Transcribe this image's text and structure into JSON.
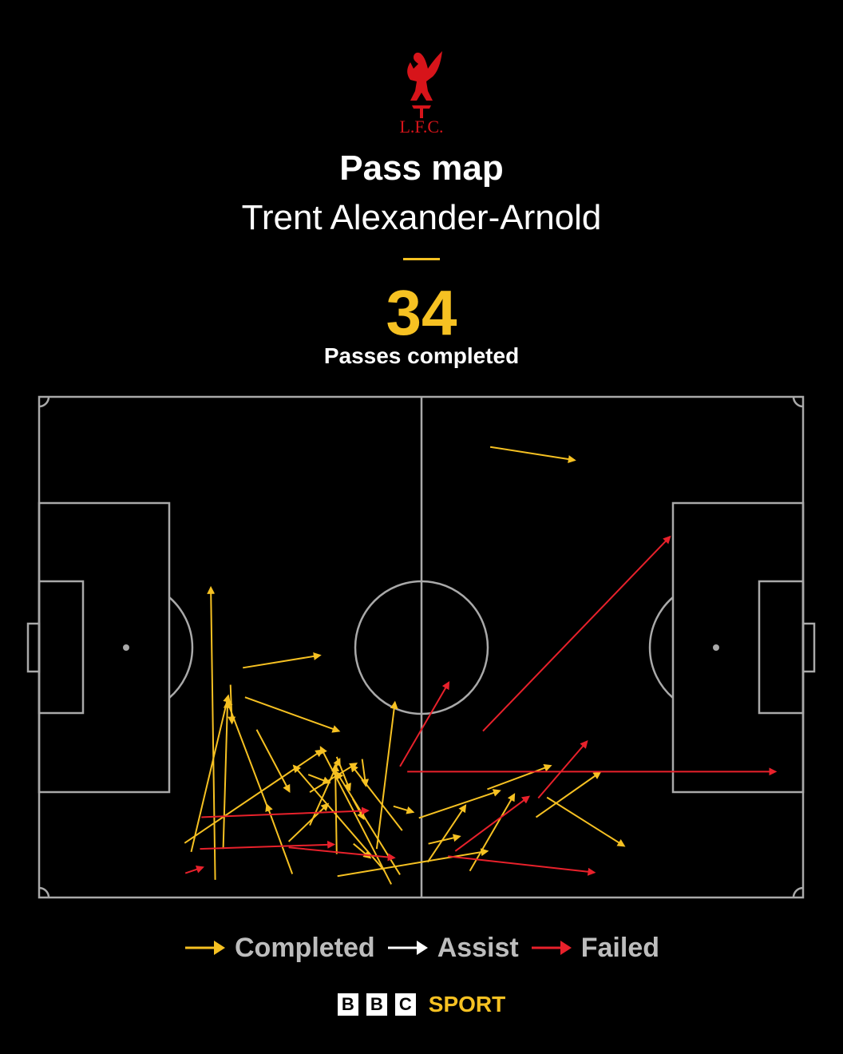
{
  "header": {
    "crest_text": "L.F.C.",
    "title": "Pass map",
    "subtitle": "Trent Alexander-Arnold",
    "stat_value": "34",
    "stat_label": "Passes completed"
  },
  "colors": {
    "background": "#000000",
    "pitch_lines": "#a9a9a9",
    "completed": "#f6c122",
    "assist": "#ffffff",
    "failed": "#e8212b",
    "crest": "#d7141a"
  },
  "legend": [
    {
      "label": "Completed",
      "color": "#f6c122"
    },
    {
      "label": "Assist",
      "color": "#ffffff"
    },
    {
      "label": "Failed",
      "color": "#e8212b"
    }
  ],
  "footer": {
    "bbc_letters": [
      "B",
      "B",
      "C"
    ],
    "sport_label": "SPORT"
  },
  "chart_data": {
    "type": "pass-map",
    "pitch": {
      "length": 105,
      "width": 68
    },
    "attacking_direction": "right",
    "passes": [
      {
        "outcome": "completed",
        "start": [
          62.0,
          61.2
        ],
        "end": [
          73.6,
          59.4
        ]
      },
      {
        "outcome": "completed",
        "start": [
          24.2,
          2.4
        ],
        "end": [
          23.6,
          42.1
        ]
      },
      {
        "outcome": "completed",
        "start": [
          28.0,
          31.2
        ],
        "end": [
          38.6,
          32.9
        ]
      },
      {
        "outcome": "completed",
        "start": [
          20.9,
          6.2
        ],
        "end": [
          26.0,
          27.4
        ]
      },
      {
        "outcome": "completed",
        "start": [
          25.3,
          6.6
        ],
        "end": [
          25.9,
          26.6
        ]
      },
      {
        "outcome": "completed",
        "start": [
          37.2,
          9.8
        ],
        "end": [
          41.3,
          18.8
        ]
      },
      {
        "outcome": "completed",
        "start": [
          40.9,
          5.9
        ],
        "end": [
          40.7,
          18.0
        ]
      },
      {
        "outcome": "completed",
        "start": [
          37.2,
          14.3
        ],
        "end": [
          43.6,
          18.2
        ]
      },
      {
        "outcome": "completed",
        "start": [
          20.0,
          7.4
        ],
        "end": [
          38.9,
          20.0
        ]
      },
      {
        "outcome": "completed",
        "start": [
          28.3,
          27.2
        ],
        "end": [
          41.2,
          22.6
        ]
      },
      {
        "outcome": "completed",
        "start": [
          26.3,
          28.9
        ],
        "end": [
          26.5,
          23.7
        ]
      },
      {
        "outcome": "completed",
        "start": [
          31.6,
          11.7
        ],
        "end": [
          25.8,
          26.8
        ]
      },
      {
        "outcome": "completed",
        "start": [
          34.8,
          3.2
        ],
        "end": [
          31.3,
          12.6
        ]
      },
      {
        "outcome": "completed",
        "start": [
          37.0,
          16.7
        ],
        "end": [
          39.9,
          15.6
        ]
      },
      {
        "outcome": "completed",
        "start": [
          34.3,
          7.6
        ],
        "end": [
          39.7,
          12.7
        ]
      },
      {
        "outcome": "completed",
        "start": [
          29.9,
          22.8
        ],
        "end": [
          34.4,
          14.4
        ]
      },
      {
        "outcome": "completed",
        "start": [
          47.5,
          3.6
        ],
        "end": [
          35.0,
          17.9
        ]
      },
      {
        "outcome": "completed",
        "start": [
          49.6,
          3.1
        ],
        "end": [
          40.9,
          17.0
        ]
      },
      {
        "outcome": "completed",
        "start": [
          41.0,
          2.9
        ],
        "end": [
          61.6,
          6.3
        ]
      },
      {
        "outcome": "completed",
        "start": [
          48.4,
          1.8
        ],
        "end": [
          38.7,
          20.4
        ]
      },
      {
        "outcome": "completed",
        "start": [
          49.9,
          9.1
        ],
        "end": [
          42.9,
          18.0
        ]
      },
      {
        "outcome": "completed",
        "start": [
          52.2,
          10.8
        ],
        "end": [
          63.3,
          14.5
        ]
      },
      {
        "outcome": "completed",
        "start": [
          46.4,
          6.6
        ],
        "end": [
          48.9,
          26.5
        ]
      },
      {
        "outcome": "completed",
        "start": [
          53.5,
          7.3
        ],
        "end": [
          57.8,
          8.3
        ]
      },
      {
        "outcome": "completed",
        "start": [
          43.2,
          7.3
        ],
        "end": [
          45.5,
          5.4
        ]
      },
      {
        "outcome": "completed",
        "start": [
          48.7,
          12.4
        ],
        "end": [
          51.4,
          11.6
        ]
      },
      {
        "outcome": "completed",
        "start": [
          43.1,
          13.4
        ],
        "end": [
          44.6,
          10.7
        ]
      },
      {
        "outcome": "completed",
        "start": [
          40.9,
          19.1
        ],
        "end": [
          42.7,
          14.6
        ]
      },
      {
        "outcome": "completed",
        "start": [
          44.4,
          18.8
        ],
        "end": [
          44.9,
          15.2
        ]
      },
      {
        "outcome": "completed",
        "start": [
          53.4,
          4.8
        ],
        "end": [
          58.6,
          12.5
        ]
      },
      {
        "outcome": "completed",
        "start": [
          59.2,
          3.6
        ],
        "end": [
          65.3,
          14.0
        ]
      },
      {
        "outcome": "completed",
        "start": [
          61.6,
          14.7
        ],
        "end": [
          70.3,
          17.9
        ]
      },
      {
        "outcome": "completed",
        "start": [
          68.3,
          10.9
        ],
        "end": [
          77.1,
          17.0
        ]
      },
      {
        "outcome": "completed",
        "start": [
          69.8,
          13.6
        ],
        "end": [
          80.4,
          7.0
        ]
      }
    ],
    "failed_passes": [
      {
        "outcome": "failed",
        "start": [
          22.3,
          10.9
        ],
        "end": [
          45.2,
          11.8
        ]
      },
      {
        "outcome": "failed",
        "start": [
          22.1,
          6.6
        ],
        "end": [
          40.5,
          7.2
        ]
      },
      {
        "outcome": "failed",
        "start": [
          34.3,
          6.8
        ],
        "end": [
          48.8,
          5.4
        ]
      },
      {
        "outcome": "failed",
        "start": [
          20.1,
          3.3
        ],
        "end": [
          22.5,
          4.1
        ]
      },
      {
        "outcome": "failed",
        "start": [
          61.0,
          22.6
        ],
        "end": [
          86.7,
          49.0
        ]
      },
      {
        "outcome": "failed",
        "start": [
          49.6,
          17.8
        ],
        "end": [
          56.3,
          29.2
        ]
      },
      {
        "outcome": "failed",
        "start": [
          50.6,
          17.1
        ],
        "end": [
          101.2,
          17.1
        ]
      },
      {
        "outcome": "failed",
        "start": [
          57.2,
          6.3
        ],
        "end": [
          67.3,
          13.7
        ]
      },
      {
        "outcome": "failed",
        "start": [
          68.6,
          13.5
        ],
        "end": [
          75.3,
          21.2
        ]
      },
      {
        "outcome": "failed",
        "start": [
          56.2,
          5.6
        ],
        "end": [
          76.3,
          3.4
        ]
      }
    ]
  }
}
